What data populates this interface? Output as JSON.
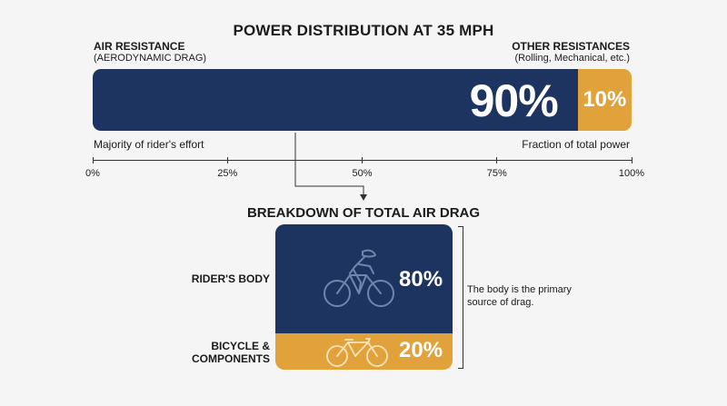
{
  "title": "POWER DISTRIBUTION AT 35 MPH",
  "air_resistance": {
    "heading": "AIR RESISTANCE",
    "subheading": "(AERODYNAMIC DRAG)",
    "percent_label": "90%",
    "caption": "Majority of rider's effort",
    "color": "#1d3461"
  },
  "other_resistances": {
    "heading": "OTHER RESISTANCES",
    "subheading": "(Rolling, Mechanical, etc.)",
    "percent_label": "10%",
    "caption": "Fraction of total power",
    "color": "#e2a23b"
  },
  "chart_data": {
    "type": "bar",
    "stacked": true,
    "orientation": "horizontal",
    "categories": [
      "AIR RESISTANCE",
      "OTHER RESISTANCES"
    ],
    "values": [
      90,
      10
    ],
    "xlim": [
      0,
      100
    ],
    "ticks": [
      "0%",
      "25%",
      "50%",
      "75%",
      "100%"
    ]
  },
  "breakdown": {
    "title": "BREAKDOWN OF TOTAL AIR DRAG",
    "rider": {
      "label": "RIDER'S BODY",
      "percent_label": "80%",
      "value": 80,
      "icon": "cyclist-icon"
    },
    "bicycle": {
      "label_line1": "BICYCLE &",
      "label_line2": "COMPONENTS",
      "percent_label": "20%",
      "value": 20,
      "icon": "bicycle-icon"
    },
    "note": "The body is the primary source of drag."
  }
}
